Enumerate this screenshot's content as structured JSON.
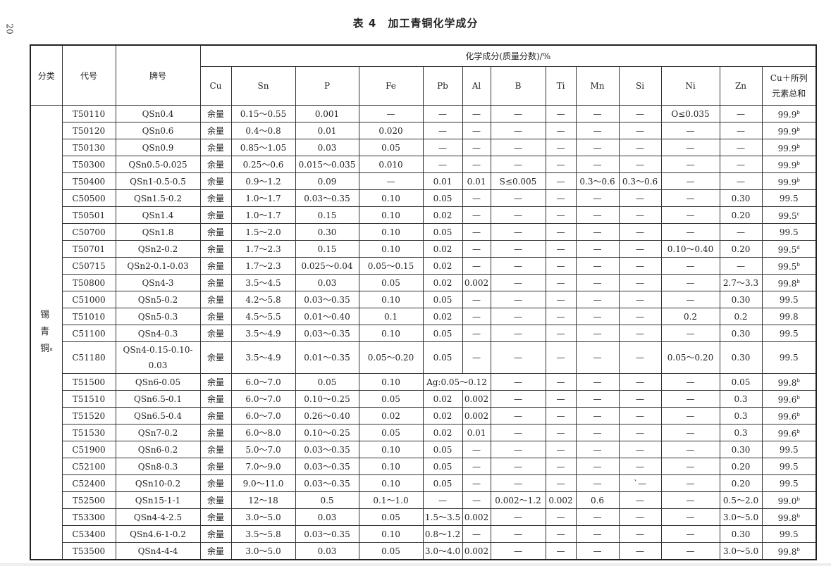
{
  "page_number": "20",
  "title": "表 4　加工青铜化学成分",
  "header": {
    "category": "分类",
    "code": "代号",
    "grade": "牌号",
    "composition": "化学成分(质量分数)/%",
    "elements": [
      "Cu",
      "Sn",
      "P",
      "Fe",
      "Pb",
      "Al",
      "B",
      "Ti",
      "Mn",
      "Si",
      "Ni",
      "Zn"
    ],
    "sum_line1": "Cu＋所列",
    "sum_line2": "元素总和"
  },
  "category": {
    "label": "锡青铜",
    "sup": "a"
  },
  "rows": [
    {
      "code": "T50110",
      "grade": "QSn0.4",
      "cells": [
        "余量",
        "0.15～0.55",
        "0.001",
        "—",
        "—",
        "—",
        "—",
        "—",
        "—",
        "—",
        "O≤0.035",
        "—"
      ],
      "sum": "99.9",
      "sup": "b"
    },
    {
      "code": "T50120",
      "grade": "QSn0.6",
      "cells": [
        "余量",
        "0.4～0.8",
        "0.01",
        "0.020",
        "—",
        "—",
        "—",
        "—",
        "—",
        "—",
        "—",
        "—"
      ],
      "sum": "99.9",
      "sup": "b"
    },
    {
      "code": "T50130",
      "grade": "QSn0.9",
      "cells": [
        "余量",
        "0.85～1.05",
        "0.03",
        "0.05",
        "—",
        "—",
        "—",
        "—",
        "—",
        "—",
        "—",
        "—"
      ],
      "sum": "99.9",
      "sup": "b"
    },
    {
      "code": "T50300",
      "grade": "QSn0.5-0.025",
      "cells": [
        "余量",
        "0.25～0.6",
        "0.015～0.035",
        "0.010",
        "—",
        "—",
        "—",
        "—",
        "—",
        "—",
        "—",
        "—"
      ],
      "sum": "99.9",
      "sup": "b"
    },
    {
      "code": "T50400",
      "grade": "QSn1-0.5-0.5",
      "cells": [
        "余量",
        "0.9～1.2",
        "0.09",
        "—",
        "0.01",
        "0.01",
        "S≤0.005",
        "—",
        "0.3～0.6",
        "0.3～0.6",
        "—",
        "—"
      ],
      "sum": "99.9",
      "sup": "b"
    },
    {
      "code": "C50500",
      "grade": "QSn1.5-0.2",
      "cells": [
        "余量",
        "1.0～1.7",
        "0.03～0.35",
        "0.10",
        "0.05",
        "—",
        "—",
        "—",
        "—",
        "—",
        "—",
        "0.30"
      ],
      "sum": "99.5",
      "sup": ""
    },
    {
      "code": "T50501",
      "grade": "QSn1.4",
      "cells": [
        "余量",
        "1.0～1.7",
        "0.15",
        "0.10",
        "0.02",
        "—",
        "—",
        "—",
        "—",
        "—",
        "—",
        "0.20"
      ],
      "sum": "99.5",
      "sup": "c"
    },
    {
      "code": "C50700",
      "grade": "QSn1.8",
      "cells": [
        "余量",
        "1.5～2.0",
        "0.30",
        "0.10",
        "0.05",
        "—",
        "—",
        "—",
        "—",
        "—",
        "—",
        "—"
      ],
      "sum": "99.5",
      "sup": ""
    },
    {
      "code": "T50701",
      "grade": "QSn2-0.2",
      "cells": [
        "余量",
        "1.7～2.3",
        "0.15",
        "0.10",
        "0.02",
        "—",
        "—",
        "—",
        "—",
        "—",
        "0.10～0.40",
        "0.20"
      ],
      "sum": "99.5",
      "sup": "d"
    },
    {
      "code": "C50715",
      "grade": "QSn2-0.1-0.03",
      "cells": [
        "余量",
        "1.7～2.3",
        "0.025～0.04",
        "0.05～0.15",
        "0.02",
        "—",
        "—",
        "—",
        "—",
        "—",
        "—",
        "—"
      ],
      "sum": "99.5",
      "sup": "b"
    },
    {
      "code": "T50800",
      "grade": "QSn4-3",
      "cells": [
        "余量",
        "3.5～4.5",
        "0.03",
        "0.05",
        "0.02",
        "0.002",
        "—",
        "—",
        "—",
        "—",
        "—",
        "2.7～3.3"
      ],
      "sum": "99.8",
      "sup": "b"
    },
    {
      "code": "C51000",
      "grade": "QSn5-0.2",
      "cells": [
        "余量",
        "4.2～5.8",
        "0.03～0.35",
        "0.10",
        "0.05",
        "—",
        "—",
        "—",
        "—",
        "—",
        "—",
        "0.30"
      ],
      "sum": "99.5",
      "sup": ""
    },
    {
      "code": "T51010",
      "grade": "QSn5-0.3",
      "cells": [
        "余量",
        "4.5～5.5",
        "0.01～0.40",
        "0.1",
        "0.02",
        "—",
        "—",
        "—",
        "—",
        "—",
        "0.2",
        "0.2"
      ],
      "sum": "99.8",
      "sup": ""
    },
    {
      "code": "C51100",
      "grade": "QSn4-0.3",
      "cells": [
        "余量",
        "3.5～4.9",
        "0.03～0.35",
        "0.10",
        "0.05",
        "—",
        "—",
        "—",
        "—",
        "—",
        "—",
        "0.30"
      ],
      "sum": "99.5",
      "sup": ""
    },
    {
      "code": "C51180",
      "grade": "QSn4-0.15-0.10-0.03",
      "tall": true,
      "cells": [
        "余量",
        "3.5～4.9",
        "0.01～0.35",
        "0.05～0.20",
        "0.05",
        "—",
        "—",
        "—",
        "—",
        "—",
        "0.05～0.20",
        "0.30"
      ],
      "sum": "99.5",
      "sup": ""
    },
    {
      "code": "T51500",
      "grade": "QSn6-0.05",
      "span_pb_al": true,
      "cells": [
        "余量",
        "6.0～7.0",
        "0.05",
        "0.10",
        "Ag:0.05～0.12",
        "",
        "—",
        "—",
        "—",
        "—",
        "—",
        "0.05"
      ],
      "sum": "99.8",
      "sup": "b"
    },
    {
      "code": "T51510",
      "grade": "QSn6.5-0.1",
      "cells": [
        "余量",
        "6.0～7.0",
        "0.10～0.25",
        "0.05",
        "0.02",
        "0.002",
        "—",
        "—",
        "—",
        "—",
        "—",
        "0.3"
      ],
      "sum": "99.6",
      "sup": "b"
    },
    {
      "code": "T51520",
      "grade": "QSn6.5-0.4",
      "cells": [
        "余量",
        "6.0～7.0",
        "0.26～0.40",
        "0.02",
        "0.02",
        "0.002",
        "—",
        "—",
        "—",
        "—",
        "—",
        "0.3"
      ],
      "sum": "99.6",
      "sup": "b"
    },
    {
      "code": "T51530",
      "grade": "QSn7-0.2",
      "cells": [
        "余量",
        "6.0～8.0",
        "0.10～0.25",
        "0.05",
        "0.02",
        "0.01",
        "—",
        "—",
        "—",
        "—",
        "—",
        "0.3"
      ],
      "sum": "99.6",
      "sup": "b"
    },
    {
      "code": "C51900",
      "grade": "QSn6-0.2",
      "cells": [
        "余量",
        "5.0～7.0",
        "0.03～0.35",
        "0.10",
        "0.05",
        "—",
        "—",
        "—",
        "—",
        "—",
        "—",
        "0.30"
      ],
      "sum": "99.5",
      "sup": ""
    },
    {
      "code": "C52100",
      "grade": "QSn8-0.3",
      "cells": [
        "余量",
        "7.0～9.0",
        "0.03～0.35",
        "0.10",
        "0.05",
        "—",
        "—",
        "—",
        "—",
        "—",
        "—",
        "0.20"
      ],
      "sum": "99.5",
      "sup": ""
    },
    {
      "code": "C52400",
      "grade": "QSn10-0.2",
      "cells": [
        "余量",
        "9.0～11.0",
        "0.03～0.35",
        "0.10",
        "0.05",
        "—",
        "—",
        "—",
        "—",
        "`—",
        "—",
        "0.20"
      ],
      "sum": "99.5",
      "sup": ""
    },
    {
      "code": "T52500",
      "grade": "QSn15-1-1",
      "cells": [
        "余量",
        "12～18",
        "0.5",
        "0.1～1.0",
        "—",
        "—",
        "0.002～1.2",
        "0.002",
        "0.6",
        "—",
        "—",
        "0.5～2.0"
      ],
      "sum": "99.0",
      "sup": "b"
    },
    {
      "code": "T53300",
      "grade": "QSn4-4-2.5",
      "cells": [
        "余量",
        "3.0～5.0",
        "0.03",
        "0.05",
        "1.5～3.5",
        "0.002",
        "—",
        "—",
        "—",
        "—",
        "—",
        "3.0～5.0"
      ],
      "sum": "99.8",
      "sup": "b"
    },
    {
      "code": "C53400",
      "grade": "QSn4.6-1-0.2",
      "cells": [
        "余量",
        "3.5～5.8",
        "0.03～0.35",
        "0.10",
        "0.8～1.2",
        "—",
        "—",
        "—",
        "—",
        "—",
        "—",
        "0.30"
      ],
      "sum": "99.5",
      "sup": ""
    },
    {
      "code": "T53500",
      "grade": "QSn4-4-4",
      "cells": [
        "余量",
        "3.0～5.0",
        "0.03",
        "0.05",
        "3.0～4.0",
        "0.002",
        "—",
        "—",
        "—",
        "—",
        "—",
        "3.0～5.0"
      ],
      "sum": "99.8",
      "sup": "b"
    }
  ]
}
